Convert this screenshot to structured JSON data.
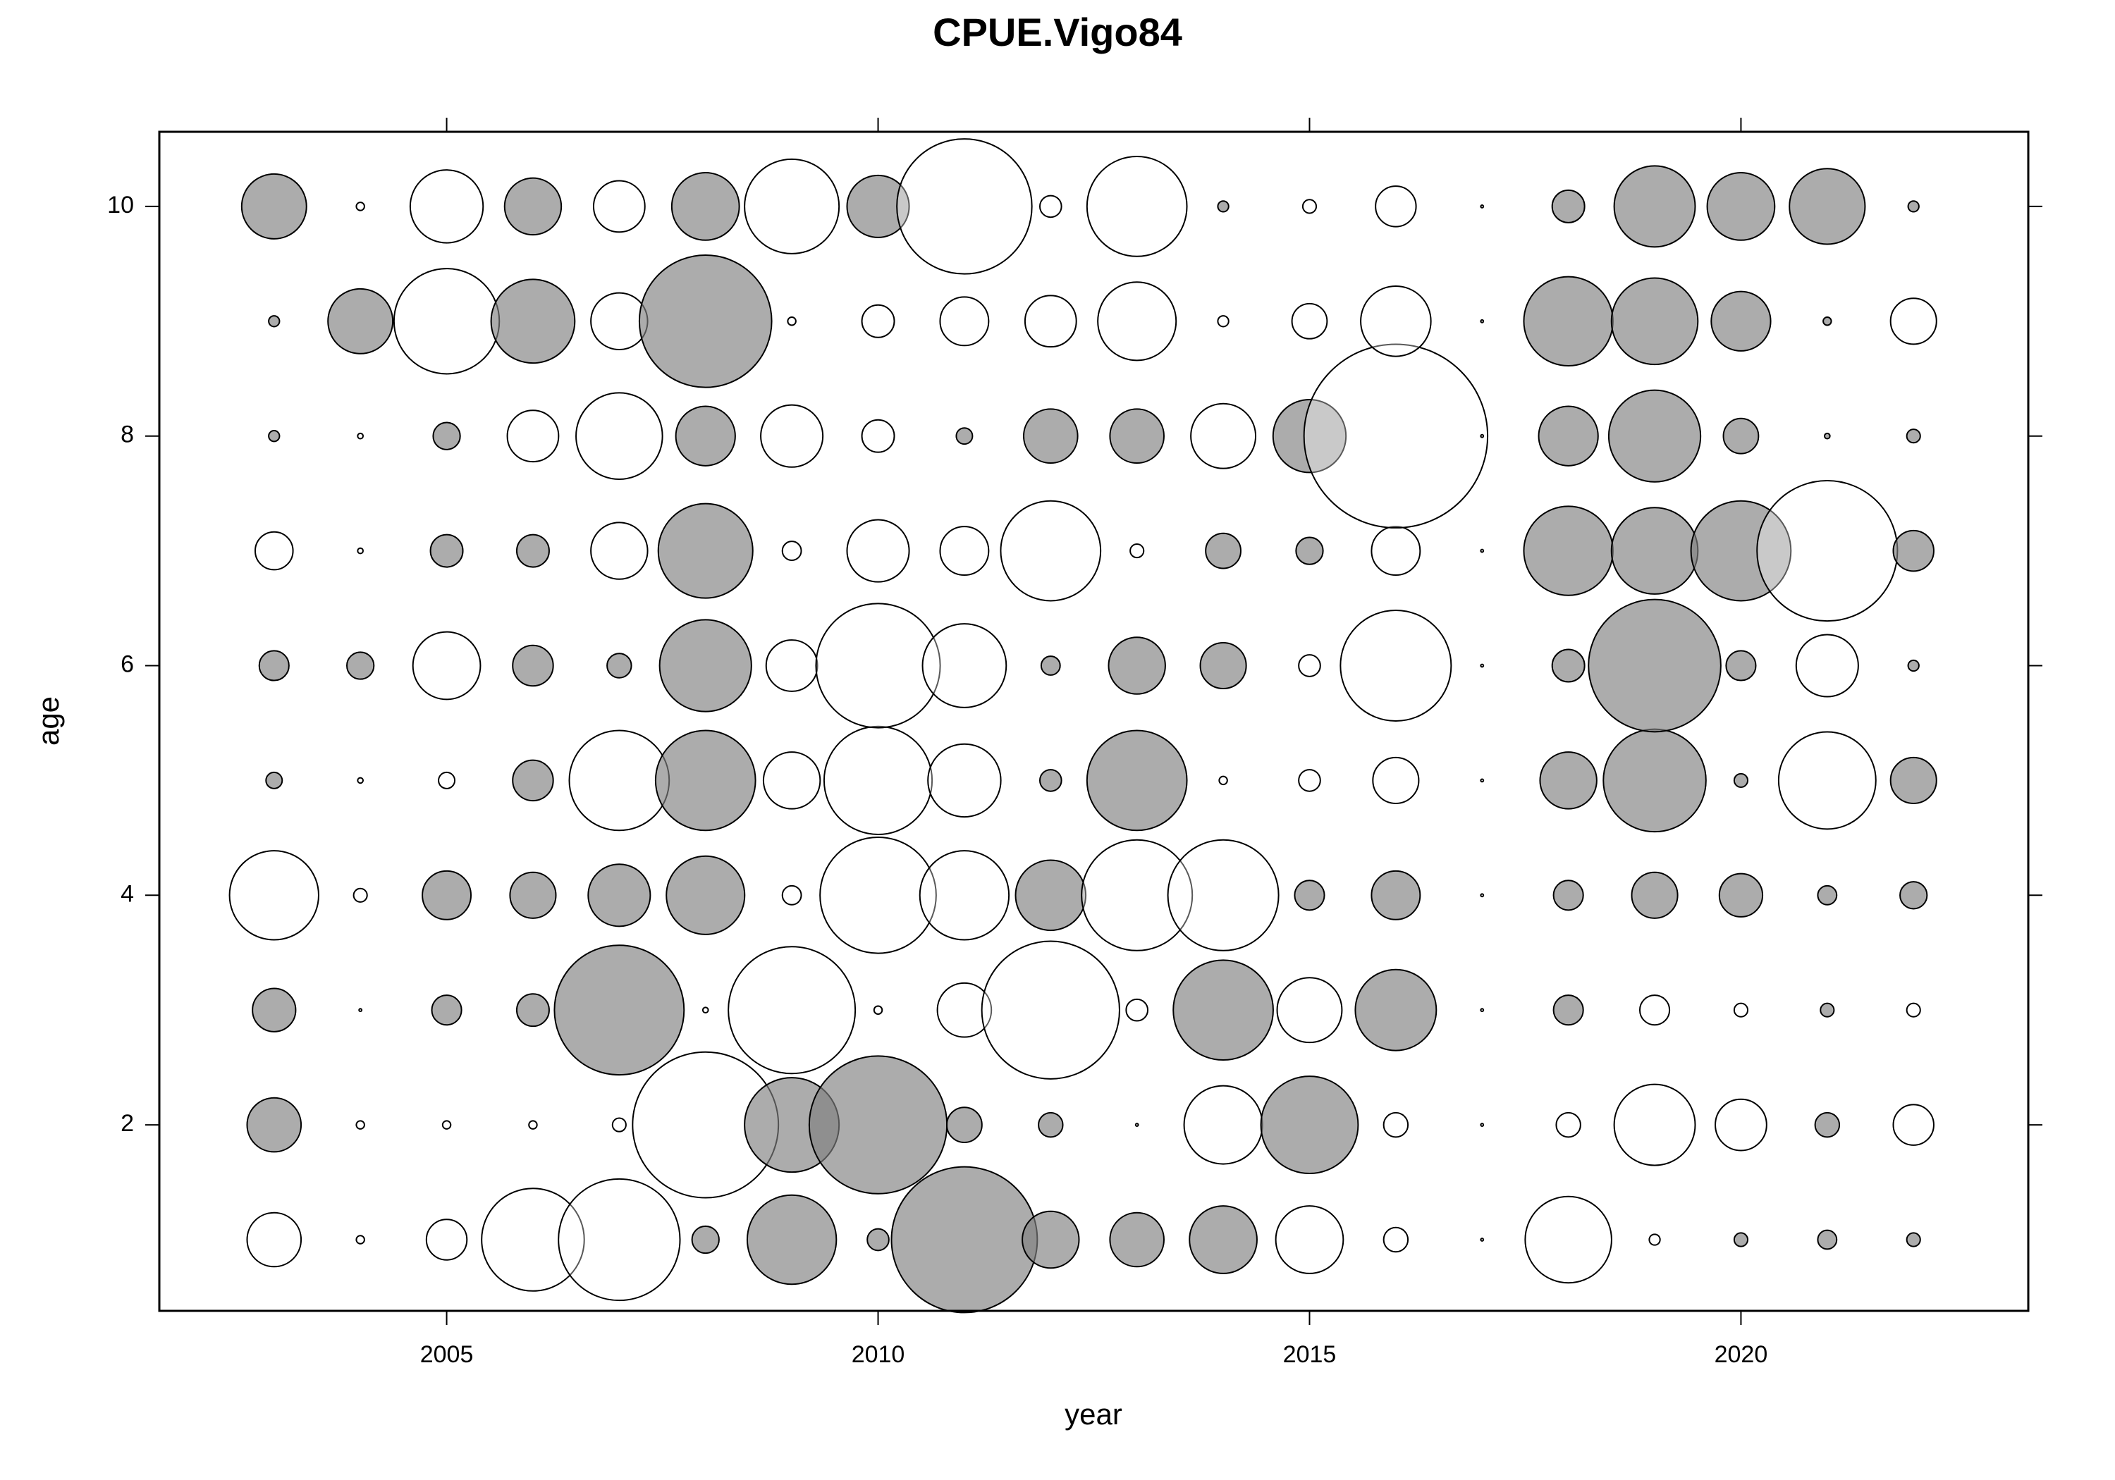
{
  "chart_data": {
    "type": "bubble",
    "title": "CPUE.Vigo84",
    "x_label": "year",
    "y_label": "age",
    "x": [
      2003,
      2004,
      2005,
      2006,
      2007,
      2008,
      2009,
      2010,
      2011,
      2012,
      2013,
      2014,
      2015,
      2016,
      2017,
      2018,
      2019,
      2020,
      2021,
      2022
    ],
    "y": [
      1,
      2,
      3,
      4,
      5,
      6,
      7,
      8,
      9,
      10
    ],
    "values": [
      [
        -1,
        -0.15,
        -0.75,
        -1.9,
        -2.25,
        0.5,
        1.65,
        0.4,
        2.7,
        1.05,
        1,
        1.25,
        -1.25,
        -0.45,
        -0.05,
        -1.6,
        -0.2,
        0.25,
        0.35,
        0.25
      ],
      [
        1,
        -0.15,
        -0.15,
        -0.15,
        -0.25,
        -2.7,
        1.75,
        2.55,
        0.65,
        0.45,
        -0.05,
        -1.45,
        1.8,
        -0.45,
        -0.05,
        -0.45,
        -1.5,
        -0.95,
        0.45,
        -0.75
      ],
      [
        0.8,
        -0.05,
        0.55,
        0.6,
        2.4,
        -0.1,
        -2.35,
        -0.15,
        -1,
        -2.55,
        -0.4,
        1.85,
        -1.2,
        1.5,
        -0.05,
        0.55,
        -0.55,
        -0.25,
        0.25,
        -0.25
      ],
      [
        -1.65,
        -0.25,
        0.9,
        0.85,
        1.15,
        1.45,
        -0.35,
        -2.15,
        -1.65,
        1.3,
        -2.05,
        -2.05,
        0.55,
        0.9,
        -0.05,
        0.55,
        0.85,
        0.8,
        0.35,
        0.5
      ],
      [
        0.3,
        -0.1,
        -0.3,
        0.75,
        -1.85,
        1.85,
        -1.05,
        -2,
        -1.35,
        0.4,
        1.85,
        -0.15,
        -0.4,
        -0.85,
        -0.05,
        1.05,
        1.9,
        0.25,
        -1.8,
        0.85
      ],
      [
        0.55,
        0.5,
        -1.25,
        0.75,
        0.45,
        1.7,
        -0.95,
        -2.3,
        -1.55,
        0.35,
        1.05,
        0.85,
        -0.4,
        -2.05,
        -0.05,
        0.6,
        2.45,
        0.55,
        -1.15,
        0.2
      ],
      [
        -0.7,
        -0.1,
        0.6,
        0.6,
        -1.05,
        1.75,
        -0.35,
        -1.15,
        -0.9,
        -1.85,
        -0.25,
        0.65,
        0.5,
        -0.9,
        -0.05,
        1.65,
        1.6,
        1.85,
        -2.6,
        0.75
      ],
      [
        0.2,
        -0.1,
        0.5,
        -0.95,
        -1.6,
        1.1,
        -1.15,
        -0.6,
        0.3,
        1,
        1,
        -1.2,
        1.35,
        -3.4,
        -0.05,
        1.1,
        1.7,
        0.65,
        0.1,
        0.25
      ],
      [
        0.2,
        1.2,
        -1.95,
        1.55,
        -1.05,
        2.45,
        -0.15,
        -0.6,
        -0.9,
        -0.95,
        -1.45,
        -0.2,
        -0.65,
        -1.3,
        -0.05,
        1.65,
        1.6,
        1.1,
        0.15,
        -0.85
      ],
      [
        1.2,
        -0.15,
        -1.35,
        1.05,
        -0.95,
        1.25,
        -1.75,
        1.15,
        -2.5,
        -0.4,
        -1.85,
        0.2,
        -0.25,
        -0.75,
        -0.05,
        0.6,
        1.5,
        1.25,
        1.4,
        0.2
      ]
    ],
    "positive_color": "#808080",
    "negative_color": "#ffffff",
    "xlim": [
      2001.67,
      2023.33
    ],
    "ylim": [
      0.38,
      10.65
    ],
    "xticks": [
      2005,
      2010,
      2015,
      2020
    ],
    "yticks": [
      2,
      4,
      6,
      8,
      10
    ]
  }
}
